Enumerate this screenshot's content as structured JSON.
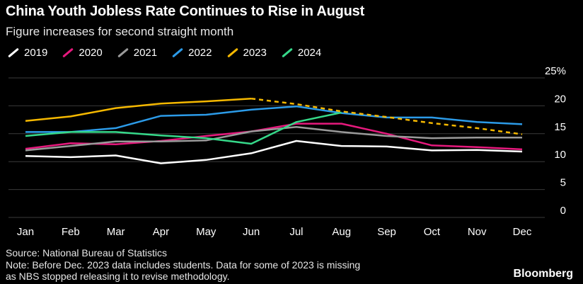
{
  "title": "China Youth Jobless Rate Continues to Rise in August",
  "subtitle": "Figure increases for second straight month",
  "source": "Source: National Bureau of Statistics",
  "note_line1": "Note: Before Dec. 2023 data includes students. Data for some of 2023 is missing",
  "note_line2": "as NBS stopped releasing it to revise methodology.",
  "brand": "Bloomberg",
  "chart_data": {
    "type": "line",
    "categories": [
      "Jan",
      "Feb",
      "Mar",
      "Apr",
      "May",
      "Jun",
      "Jul",
      "Aug",
      "Sep",
      "Oct",
      "Nov",
      "Dec"
    ],
    "y_ticks": [
      0,
      5,
      10,
      15,
      20,
      25
    ],
    "y_tick_labels": [
      "0",
      "5",
      "10",
      "15",
      "20",
      "25%"
    ],
    "ylim": [
      0,
      25
    ],
    "grid": true,
    "legend_position": "top-left",
    "series": [
      {
        "name": "2019",
        "color": "#ffffff",
        "dashed": false,
        "values": [
          11.0,
          10.8,
          11.1,
          9.7,
          10.3,
          11.5,
          13.7,
          12.8,
          12.7,
          12.0,
          12.1,
          11.8
        ]
      },
      {
        "name": "2020",
        "color": "#e6197d",
        "dashed": false,
        "values": [
          12.3,
          13.3,
          13.1,
          13.7,
          14.6,
          15.4,
          16.8,
          16.8,
          15.0,
          12.9,
          12.6,
          12.2
        ]
      },
      {
        "name": "2021",
        "color": "#9a9a9a",
        "dashed": false,
        "values": [
          12.0,
          12.8,
          13.6,
          13.6,
          13.8,
          15.4,
          16.2,
          15.3,
          14.6,
          14.2,
          14.3,
          14.3
        ]
      },
      {
        "name": "2022",
        "color": "#2c9be8",
        "dashed": false,
        "values": [
          15.3,
          15.3,
          16.0,
          18.2,
          18.4,
          19.3,
          19.9,
          18.7,
          17.9,
          17.9,
          17.1,
          16.7
        ]
      },
      {
        "name": "2023",
        "color": "#f5b800",
        "dashed": false,
        "values": [
          17.3,
          18.1,
          19.6,
          20.4,
          20.8,
          21.3,
          null,
          null,
          null,
          null,
          null,
          null
        ]
      },
      {
        "name": "2023 (dashed)",
        "color": "#f5b800",
        "dashed": true,
        "values": [
          null,
          null,
          null,
          null,
          null,
          21.3,
          20.3,
          19.0,
          18.0,
          16.9,
          16.0,
          14.9
        ]
      },
      {
        "name": "2024",
        "color": "#36d98a",
        "dashed": false,
        "values": [
          14.6,
          15.3,
          15.3,
          14.7,
          14.2,
          13.2,
          17.1,
          18.8,
          null,
          null,
          null,
          null
        ]
      }
    ]
  }
}
